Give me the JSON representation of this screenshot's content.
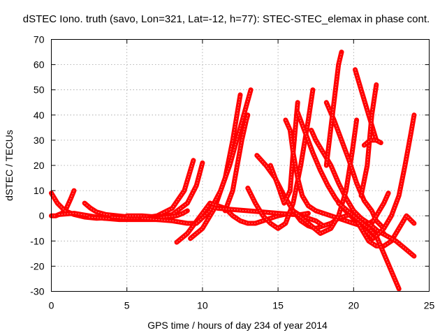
{
  "chart_data": {
    "type": "line",
    "title": "dSTEC Iono. truth (savo, Lon=321, Lat=-12, h=77): STEC-STEC_elemax in phase cont.",
    "xlabel": "GPS time / hours of day 234 of year 2014",
    "ylabel": "dSTEC  / TECUs",
    "xlim": [
      0,
      25
    ],
    "ylim": [
      -30,
      70
    ],
    "xticks": [
      0,
      5,
      10,
      15,
      20,
      25
    ],
    "yticks": [
      -30,
      -20,
      -10,
      0,
      10,
      20,
      30,
      40,
      50,
      60,
      70
    ],
    "grid": true,
    "legend": "none",
    "marker": "plus",
    "color": "#ff0000",
    "series": [
      {
        "x": [
          0.0,
          0.3,
          0.7,
          1.0,
          1.3,
          1.5
        ],
        "values": [
          0,
          0,
          1,
          3,
          7,
          10
        ]
      },
      {
        "x": [
          0.0,
          0.4,
          0.9,
          1.5,
          2.2,
          3.0,
          3.6
        ],
        "values": [
          9,
          5,
          2,
          0.5,
          -0.5,
          -1,
          -0.8
        ]
      },
      {
        "x": [
          0.5,
          1.5,
          2.5,
          3.5,
          4.5,
          5.0
        ],
        "values": [
          0.5,
          1,
          0,
          -1,
          -0.5,
          -0.5
        ]
      },
      {
        "x": [
          2.2,
          2.6,
          3.0,
          3.6,
          4.4,
          5.2
        ],
        "values": [
          5,
          3,
          1.5,
          0.5,
          0,
          -0.5
        ]
      },
      {
        "x": [
          2.5,
          3.5,
          4.5,
          5.5,
          6.5,
          7.5,
          8.0
        ],
        "values": [
          -0.5,
          -1,
          -1.5,
          -1.5,
          -1.5,
          -1.5,
          -1
        ]
      },
      {
        "x": [
          4.0,
          5.0,
          6.0,
          7.0,
          8.0,
          8.8,
          9.4
        ],
        "values": [
          -0.5,
          -1,
          -1,
          0,
          3,
          10,
          22
        ]
      },
      {
        "x": [
          5.0,
          6.0,
          7.0,
          8.0,
          9.0,
          9.6,
          10.0
        ],
        "values": [
          0,
          0,
          -0.5,
          0.5,
          5,
          12,
          21
        ]
      },
      {
        "x": [
          6.5,
          7.5,
          8.3,
          8.7,
          9.0
        ],
        "values": [
          -1,
          -0.5,
          0,
          1,
          2
        ]
      },
      {
        "x": [
          6.0,
          7.0,
          8.0,
          8.5,
          9.0,
          9.5
        ],
        "values": [
          -1,
          -1.5,
          -2,
          -2.5,
          -3,
          -3
        ]
      },
      {
        "x": [
          8.3,
          9.0,
          9.5,
          10.0,
          10.5
        ],
        "values": [
          -10.5,
          -7,
          -3,
          1,
          5
        ]
      },
      {
        "x": [
          9.2,
          10.0,
          10.8,
          11.5,
          12.0,
          12.5
        ],
        "values": [
          -9,
          -5,
          3,
          15,
          30,
          48
        ]
      },
      {
        "x": [
          9.6,
          10.5,
          11.2,
          11.8,
          12.5,
          13.2
        ],
        "values": [
          -3,
          2,
          10,
          20,
          35,
          50
        ]
      },
      {
        "x": [
          11.5,
          12.0,
          12.3,
          12.6,
          12.9,
          13.0
        ],
        "values": [
          2,
          10,
          20,
          30,
          38,
          40
        ]
      },
      {
        "x": [
          10.5,
          11.5,
          12.0,
          12.5,
          13.0,
          13.5,
          14.0,
          14.5,
          15.0,
          15.8
        ],
        "values": [
          5,
          3,
          0,
          -2,
          -3,
          -3,
          -2,
          -1,
          0,
          1
        ]
      },
      {
        "x": [
          11.0,
          12.0,
          13.0,
          14.0,
          15.0,
          16.0,
          16.5,
          17.0
        ],
        "values": [
          3,
          2.5,
          2,
          1.5,
          1,
          0.5,
          0.5,
          1
        ]
      },
      {
        "x": [
          13.0,
          13.5,
          14.0,
          14.5,
          15.0,
          15.5,
          16.0,
          16.5,
          17.0,
          17.3
        ],
        "values": [
          11,
          5,
          0,
          -3,
          -5,
          -3,
          5,
          20,
          38,
          50
        ]
      },
      {
        "x": [
          13.6,
          14.2,
          14.8,
          15.4,
          16.0,
          16.5,
          17.0,
          17.5,
          18.0
        ],
        "values": [
          24,
          20,
          15,
          8,
          2,
          -2,
          -4,
          -5,
          -4
        ]
      },
      {
        "x": [
          14.5,
          15.0,
          15.4,
          15.8,
          16.0,
          16.3
        ],
        "values": [
          20,
          12,
          5,
          10,
          25,
          45
        ]
      },
      {
        "x": [
          15.5,
          15.8,
          16.0,
          16.3,
          16.6,
          17.0,
          17.5,
          18.0,
          18.5,
          19.0,
          19.5,
          20.0,
          20.5,
          21.0,
          21.5,
          22.0
        ],
        "values": [
          38,
          34,
          25,
          15,
          8,
          4,
          2,
          1,
          0,
          -1,
          -2,
          -3,
          -4,
          -5,
          -6,
          -7
        ]
      },
      {
        "x": [
          16.3,
          16.8,
          17.3,
          17.8,
          18.3,
          18.8,
          19.3,
          19.8,
          20.3,
          20.8,
          21.3
        ],
        "values": [
          41,
          33,
          25,
          18,
          12,
          7,
          3,
          0,
          -3,
          -6,
          -9
        ]
      },
      {
        "x": [
          16.0,
          16.5,
          17.0,
          17.5,
          18.0,
          18.5,
          19.0,
          19.5,
          20.0
        ],
        "values": [
          2,
          0,
          -1,
          -2,
          -4,
          -3,
          -1,
          0,
          1
        ]
      },
      {
        "x": [
          17.2,
          17.5,
          18.0,
          18.5,
          19.0,
          19.5,
          20.0,
          20.5,
          21.0,
          21.3,
          21.5
        ],
        "values": [
          34,
          30,
          25,
          20,
          13,
          7,
          2,
          -1,
          -3,
          -2,
          0
        ]
      },
      {
        "x": [
          16.2,
          17.0,
          17.8,
          18.5,
          19.0,
          19.5,
          19.9,
          20.2
        ],
        "values": [
          1,
          -3,
          -7,
          -5,
          0,
          10,
          25,
          38
        ]
      },
      {
        "x": [
          18.2,
          18.7,
          19.2,
          19.7,
          20.2,
          20.7,
          21.2,
          21.5,
          22.0
        ],
        "values": [
          45,
          38,
          30,
          22,
          13,
          6,
          2,
          -2,
          -5
        ]
      },
      {
        "x": [
          18.2,
          18.5,
          18.8,
          19.0,
          19.2
        ],
        "values": [
          20,
          35,
          50,
          60,
          65
        ]
      },
      {
        "x": [
          20.1,
          20.5,
          21.0,
          21.5
        ],
        "values": [
          58,
          50,
          40,
          30
        ]
      },
      {
        "x": [
          20.5,
          20.9,
          21.2,
          21.5
        ],
        "values": [
          8,
          20,
          40,
          52
        ]
      },
      {
        "x": [
          20.7,
          21.1,
          21.5,
          21.8
        ],
        "values": [
          28,
          30,
          30,
          29
        ]
      },
      {
        "x": [
          19.0,
          20.0,
          20.5,
          21.0,
          21.5,
          22.0,
          22.5,
          23.0,
          23.5,
          24.0
        ],
        "values": [
          5,
          0,
          -5,
          -10,
          -12,
          -12,
          -10,
          -5,
          0,
          -3
        ]
      },
      {
        "x": [
          20.0,
          21.0,
          21.5,
          22.0,
          22.5,
          23.0
        ],
        "values": [
          0,
          -5,
          -8,
          -15,
          -22,
          -29
        ]
      },
      {
        "x": [
          21.0,
          21.5,
          22.0,
          22.3
        ],
        "values": [
          -5,
          0,
          5,
          9
        ]
      },
      {
        "x": [
          21.0,
          21.6,
          22.2,
          22.8,
          23.4,
          24.0
        ],
        "values": [
          -3,
          -6,
          -8,
          -10,
          -13,
          -16
        ]
      },
      {
        "x": [
          21.5,
          22.0,
          22.5,
          23.0,
          23.4,
          23.8,
          24.0
        ],
        "values": [
          -8,
          -5,
          0,
          8,
          20,
          33,
          40
        ]
      }
    ]
  }
}
